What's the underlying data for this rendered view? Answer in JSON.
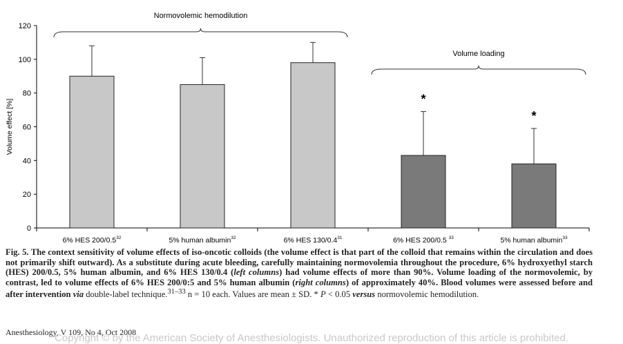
{
  "chart_data": {
    "type": "bar",
    "ylabel": "Volume effect [%]",
    "ylim": [
      0,
      120
    ],
    "yticks": [
      0,
      20,
      40,
      60,
      80,
      100,
      120
    ],
    "groups": [
      {
        "label": "Normovolemic hemodilution",
        "color": "#c8c8c8"
      },
      {
        "label": "Volume loading",
        "color": "#7a7a7a"
      }
    ],
    "bars": [
      {
        "label": "6% HES 200/0.5",
        "ref": "32",
        "value": 90,
        "sd": 18,
        "group": 0,
        "star": ""
      },
      {
        "label": "5% human albumin",
        "ref": "32",
        "value": 85,
        "sd": 16,
        "group": 0,
        "star": ""
      },
      {
        "label": "6% HES 130/0.4",
        "ref": "31",
        "value": 98,
        "sd": 12,
        "group": 0,
        "star": ""
      },
      {
        "label": "6% HES 200/0.5 ",
        "ref": "33",
        "value": 43,
        "sd": 26,
        "group": 1,
        "star": "*"
      },
      {
        "label": "5% human albumin",
        "ref": "33",
        "value": 38,
        "sd": 21,
        "group": 1,
        "star": "*"
      }
    ]
  },
  "caption": {
    "fig_label": "Fig. 5.",
    "text1": " The context sensitivity of volume effects of iso-oncotic colloids (the volume effect is that part of the colloid that remains within the circulation and does not primarily shift outward). As a substitute during acute bleeding, carefully maintaining normovolemia throughout the procedure, 6% hydroxyethyl starch (HES) 200/0.5, 5% human albumin, and 6% HES 130/0.4 (",
    "left_columns": "left columns",
    "text2": ") had volume effects of more than 90%. Volume loading of the normovolemic, by contrast, led to volume effects of 6% HES 200/0:5 and 5% human albumin (",
    "right_columns": "right columns",
    "text3": ") of approximately 40%. Blood volumes were assessed before and after intervention ",
    "via": "via",
    "text4": " double-label technique.",
    "refs": "31–33",
    "text5": " n = 10 each. Values are mean ± SD. * ",
    "p": "P",
    "text6": " < 0.05 ",
    "versus": "versus",
    "text7": " normovolemic hemodilution."
  },
  "footer": {
    "journal": "Anesthesiology, V 109, No 4, Oct 2008",
    "copyright": "Copyright © by the American Society of Anesthesiologists. Unauthorized reproduction of this article is prohibited."
  }
}
